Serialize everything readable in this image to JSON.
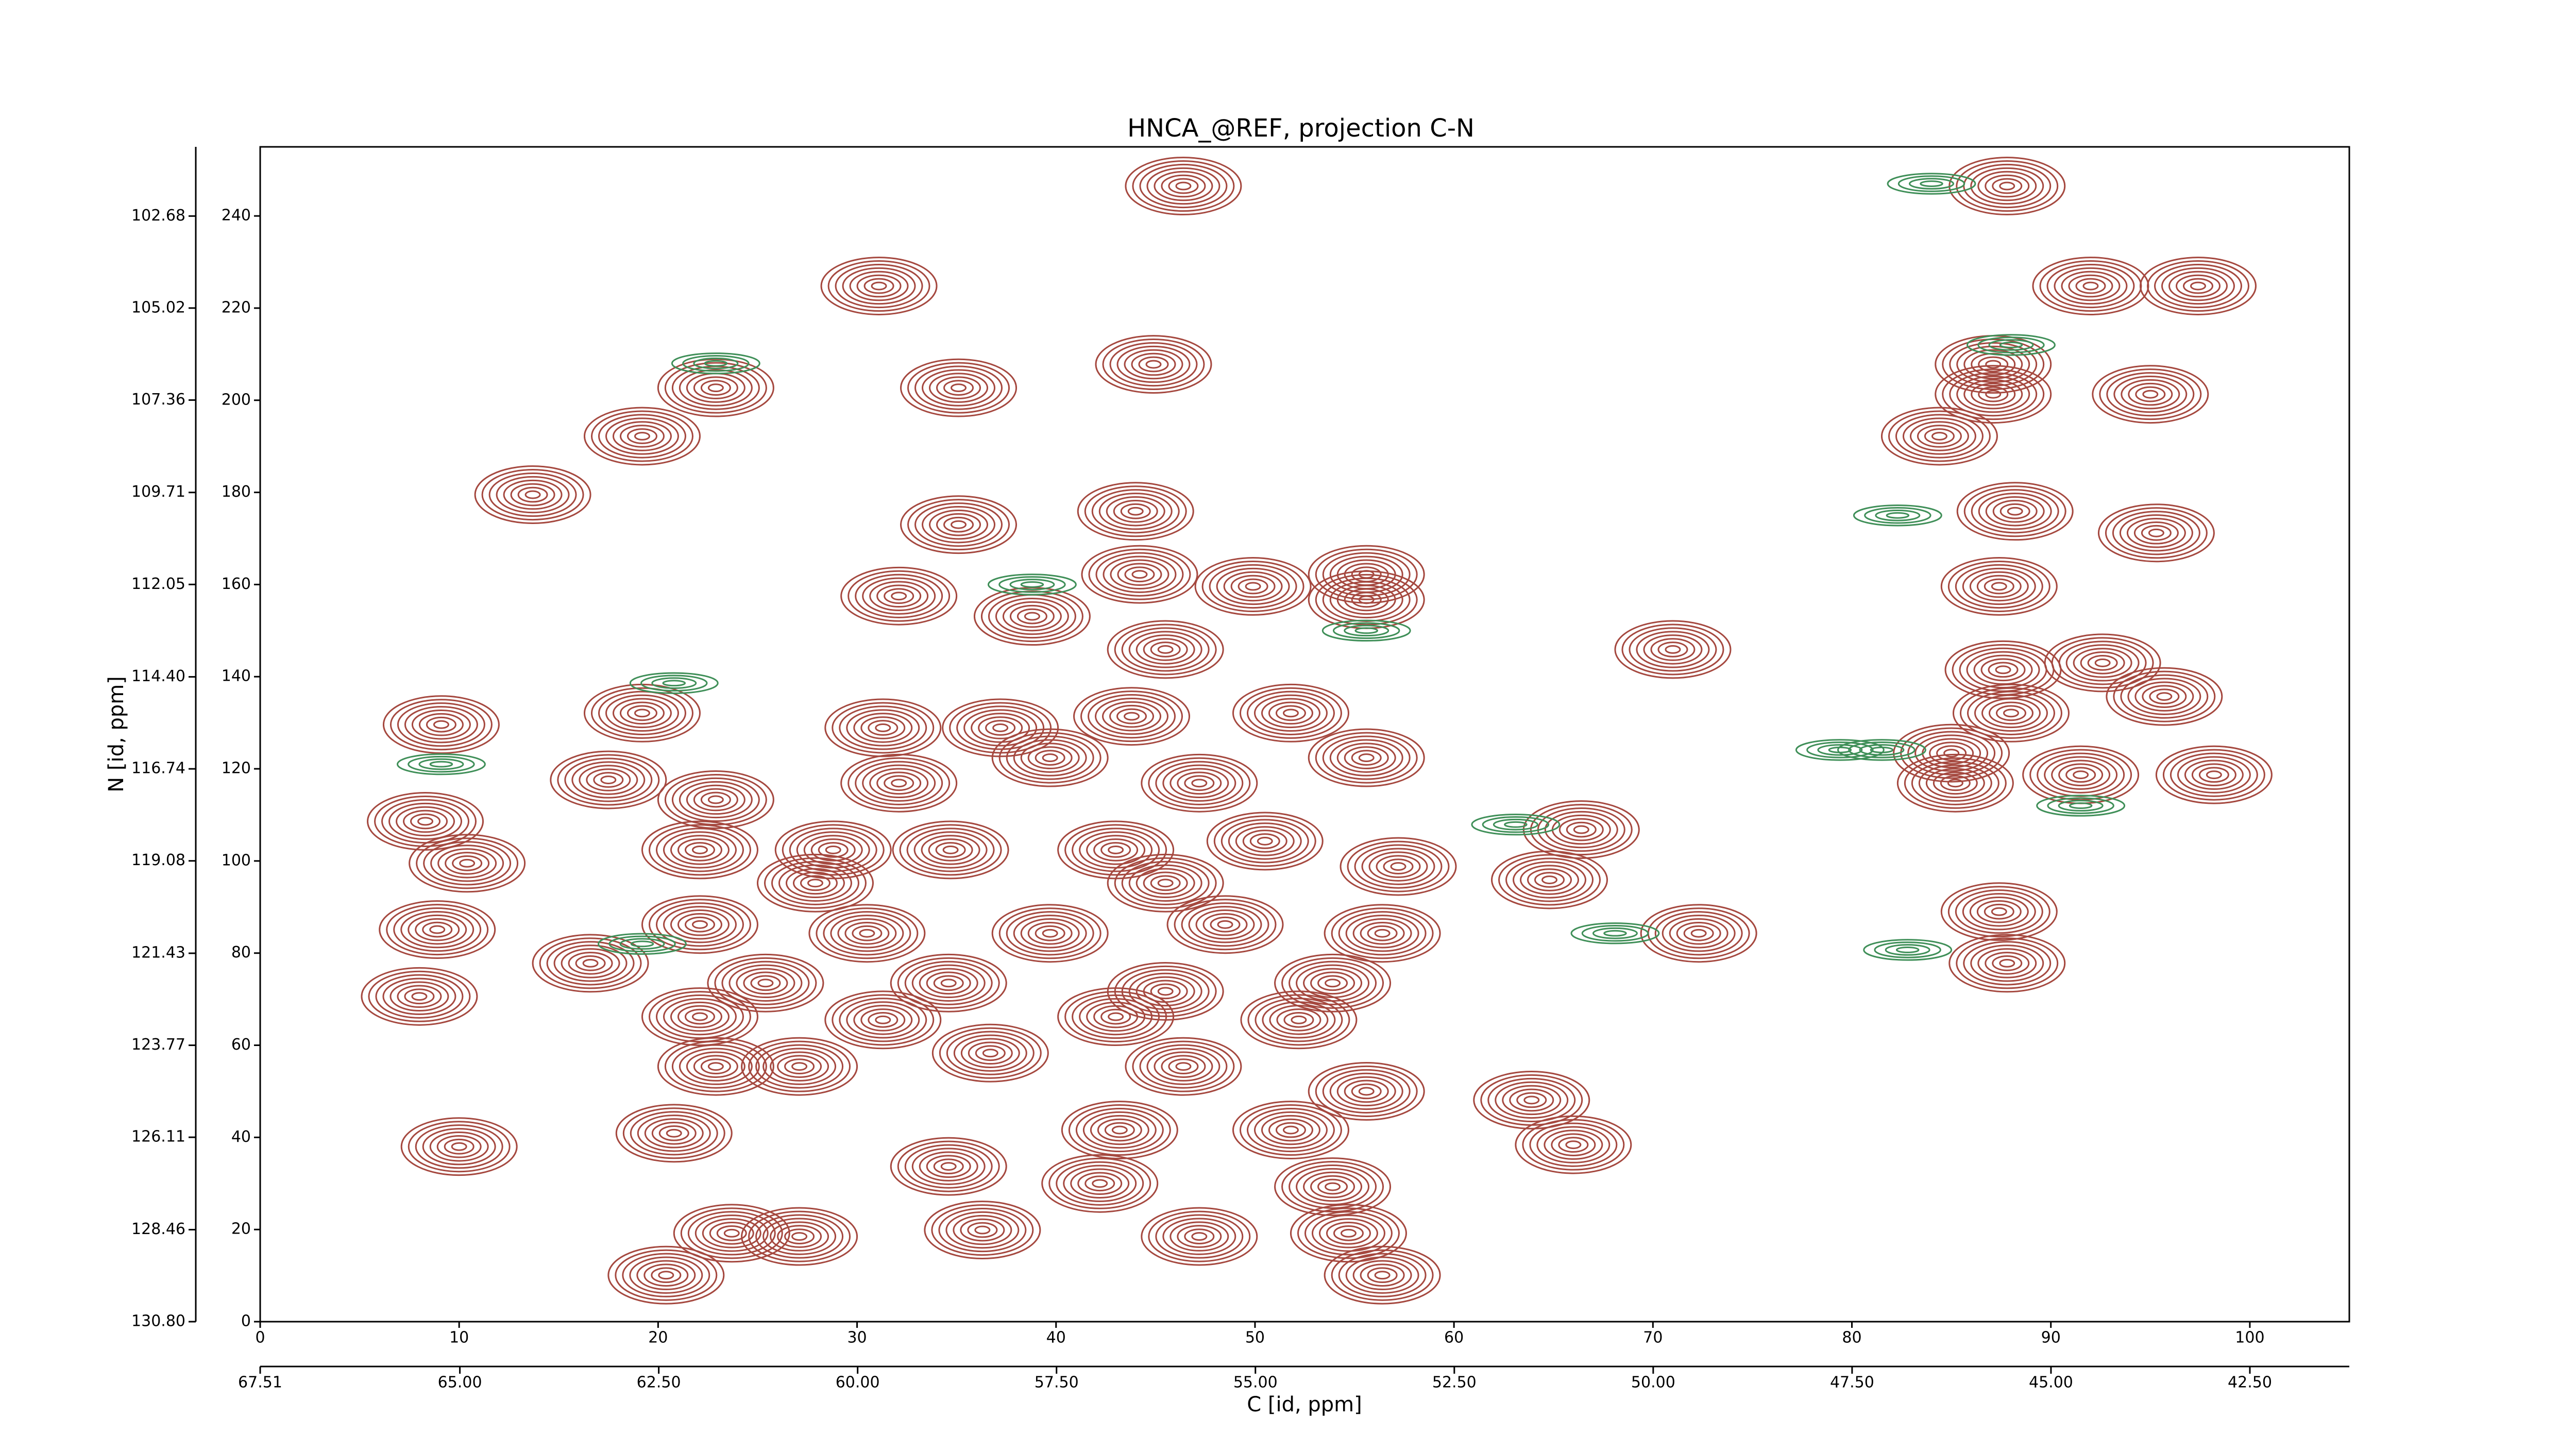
{
  "chart_data": {
    "type": "contour",
    "title": "HNCA_@REF, projection C-N",
    "xlabel": "C [id, ppm]",
    "ylabel": "N [id, ppm]",
    "xlim": [
      0,
      105
    ],
    "xticks": [
      0,
      10,
      20,
      30,
      40,
      50,
      60,
      70,
      80,
      90,
      100
    ],
    "x2lim": [
      67.51,
      41.25
    ],
    "x2ticks": [
      67.51,
      {
        "value": 65,
        "label": "65.00"
      },
      {
        "value": 62.5,
        "label": "62.50"
      },
      {
        "value": 60,
        "label": "60.00"
      },
      {
        "value": 57.5,
        "label": "57.50"
      },
      {
        "value": 55,
        "label": "55.00"
      },
      {
        "value": 52.5,
        "label": "52.50"
      },
      {
        "value": 50,
        "label": "50.00"
      },
      {
        "value": 47.5,
        "label": "47.50"
      },
      {
        "value": 45,
        "label": "45.00"
      },
      {
        "value": 42.5,
        "label": "42.50"
      }
    ],
    "ylim": [
      0,
      255
    ],
    "yticks": [
      0,
      20,
      40,
      60,
      80,
      100,
      120,
      140,
      160,
      180,
      200,
      220,
      240
    ],
    "y2lim": [
      130.8,
      100.92
    ],
    "y2ticks": [
      {
        "value": 130.8,
        "label": "130.80"
      },
      128.46,
      126.11,
      123.77,
      121.43,
      119.08,
      116.74,
      {
        "value": 114.4,
        "label": "114.40"
      },
      112.05,
      109.71,
      107.36,
      105.02,
      102.68
    ],
    "series": [
      {
        "color": "#a5483f",
        "x": [
          46.4,
          87.8,
          31.1,
          92,
          97.4,
          22.9,
          35.1,
          44.9,
          87.1,
          87.1,
          95,
          19.2,
          84.4,
          13.7,
          35.1,
          44,
          88.2,
          95.3,
          32.1,
          38.8,
          44.2,
          49.9,
          55.6,
          55.6,
          87.4,
          45.5,
          71,
          87.6,
          92.6,
          95.7,
          9.1,
          19.2,
          31.3,
          37.2,
          43.8,
          51.8,
          88,
          85,
          91.5,
          98.2,
          85.2,
          17.5,
          32.1,
          39.7,
          47.2,
          55.6,
          8.3,
          10.4,
          22.9,
          22.1,
          28.8,
          34.7,
          43,
          50.5,
          57.2,
          64.8,
          66.4,
          27.9,
          45.5,
          8.9,
          22.1,
          30.5,
          39.7,
          48.5,
          56.4,
          72.3,
          87.4,
          87.8,
          16.6,
          25.4,
          34.6,
          45.5,
          53.9,
          8,
          22.1,
          31.3,
          43,
          52.2,
          22.9,
          27.1,
          36.7,
          46.4,
          55.6,
          63.9,
          66,
          20.8,
          43.2,
          51.8,
          10,
          34.6,
          42.2,
          53.9,
          36.3,
          47.2,
          54.7,
          23.7,
          27.1,
          20.4,
          56.4
        ],
        "y": [
          246.5,
          246.5,
          224.8,
          224.8,
          224.8,
          202.7,
          202.7,
          207.8,
          207.8,
          201.3,
          201.3,
          192.2,
          192.2,
          179.5,
          173,
          175.9,
          175.9,
          171.2,
          157.5,
          153.1,
          162.2,
          159.6,
          162.2,
          156.7,
          159.6,
          145.9,
          145.9,
          141.5,
          143,
          135.7,
          129.6,
          132.1,
          128.9,
          128.9,
          131.4,
          132.1,
          132.1,
          123.4,
          118.7,
          118.7,
          116.9,
          117.6,
          116.9,
          122.4,
          116.9,
          122.4,
          108.6,
          99.5,
          113.3,
          102.4,
          102.4,
          102.4,
          102.4,
          104.3,
          98.8,
          95.9,
          106.8,
          95.2,
          95.2,
          85.1,
          86.2,
          84.3,
          84.3,
          86.2,
          84.3,
          84.3,
          89,
          77.8,
          77.8,
          73.5,
          73.5,
          71.7,
          73.5,
          70.6,
          66.2,
          65.5,
          66.2,
          65.5,
          55.4,
          55.4,
          58.3,
          55.4,
          50,
          48.1,
          38.4,
          40.9,
          41.6,
          41.6,
          38,
          33.7,
          30,
          29.3,
          19.9,
          18.5,
          19.2,
          19.2,
          18.5,
          10.1,
          10.1
        ]
      },
      {
        "color": "#3f8f58",
        "x": [
          79.4,
          81.5,
          82.8,
          84,
          82.3,
          68.1,
          63.1,
          20.8,
          22.9,
          9.1,
          38.8,
          91.5,
          55.6,
          88,
          19.2
        ],
        "y": [
          124.1,
          124.1,
          80.7,
          247,
          175,
          84.3,
          107.9,
          138.6,
          208,
          121,
          160,
          112,
          150,
          212,
          82
        ]
      }
    ]
  }
}
